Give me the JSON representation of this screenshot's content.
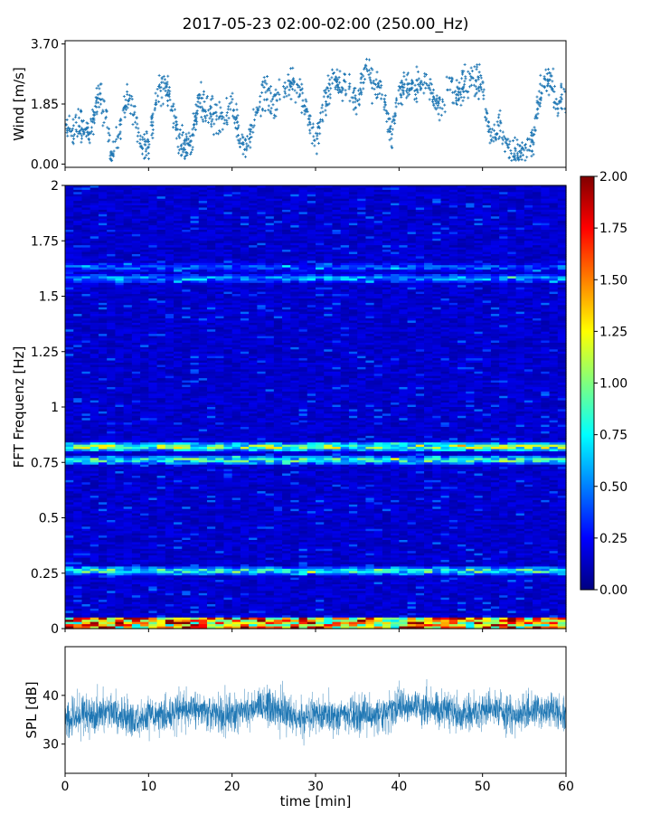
{
  "chart_data": [
    {
      "type": "scatter",
      "title": "2017-05-23 02:00-02:00 (250.00_Hz)",
      "ylabel": "Wind [m/s]",
      "xlim": [
        0,
        60
      ],
      "ylim": [
        -0.1,
        3.8
      ],
      "yticks": [
        "0.00",
        "1.85",
        "3.70"
      ],
      "marker_color": "#1f77b4",
      "series": [
        {
          "x": [
            0,
            1,
            2,
            3,
            4,
            5,
            5.5,
            6,
            7,
            8,
            9,
            10,
            11,
            12,
            13,
            14,
            15,
            16,
            17,
            18,
            19,
            20,
            21,
            22,
            23,
            24,
            25,
            26,
            27,
            28,
            29,
            30,
            31,
            32,
            33,
            34,
            35,
            36,
            37,
            38,
            39,
            40,
            41,
            42,
            43,
            44,
            45,
            46,
            47,
            48,
            49,
            50,
            51,
            52,
            53,
            54,
            55,
            56,
            57,
            58,
            59,
            60
          ],
          "y": [
            1.3,
            1.0,
            1.2,
            0.9,
            2.2,
            1.4,
            0.2,
            0.4,
            1.7,
            2.0,
            0.6,
            0.5,
            2.2,
            2.5,
            1.5,
            0.6,
            0.6,
            1.9,
            1.6,
            1.5,
            1.3,
            1.8,
            0.7,
            0.7,
            1.7,
            2.3,
            1.8,
            2.1,
            2.5,
            2.3,
            1.5,
            0.6,
            1.9,
            2.6,
            2.4,
            2.3,
            1.8,
            3.0,
            2.5,
            2.4,
            0.8,
            2.1,
            2.5,
            2.3,
            2.4,
            2.2,
            1.6,
            2.4,
            2.2,
            2.5,
            2.6,
            2.4,
            0.9,
            1.2,
            0.5,
            0.4,
            0.5,
            0.7,
            2.3,
            2.6,
            1.8,
            2.2
          ]
        }
      ]
    },
    {
      "type": "heatmap",
      "ylabel": "FFT Frequenz [Hz]",
      "xlim": [
        0,
        60
      ],
      "ylim": [
        0,
        2
      ],
      "yticks": [
        "0",
        "0.25",
        "0.5",
        "0.75",
        "1",
        "1.25",
        "1.5",
        "1.75",
        "2"
      ],
      "colormap": "jet",
      "colorbar": {
        "range": [
          0,
          2
        ],
        "ticks": [
          "0.00",
          "0.25",
          "0.50",
          "0.75",
          "1.00",
          "1.25",
          "1.50",
          "1.75",
          "2.00"
        ]
      },
      "features": [
        {
          "frequency_hz": 0.02,
          "level": 1.4
        },
        {
          "frequency_hz": 0.26,
          "level": 0.9
        },
        {
          "frequency_hz": 0.76,
          "level": 0.9
        },
        {
          "frequency_hz": 0.82,
          "level": 1.1
        },
        {
          "frequency_hz": 1.58,
          "level": 0.6
        },
        {
          "frequency_hz": 1.63,
          "level": 0.45
        }
      ],
      "background_level": 0.15
    },
    {
      "type": "line",
      "ylabel": "SPL [dB]",
      "xlabel": "time [min]",
      "xlim": [
        0,
        60
      ],
      "ylim": [
        24,
        50
      ],
      "xticks": [
        "0",
        "10",
        "20",
        "30",
        "40",
        "50",
        "60"
      ],
      "yticks": [
        "30",
        "40"
      ],
      "line_color": "#1f77b4",
      "series": [
        {
          "x": [
            0,
            2,
            4,
            6,
            8,
            10,
            12,
            14,
            16,
            18,
            20,
            22,
            24,
            26,
            28,
            30,
            32,
            34,
            36,
            38,
            40,
            42,
            44,
            46,
            48,
            50,
            52,
            54,
            56,
            58,
            60
          ],
          "y": [
            35,
            36,
            36,
            37,
            35,
            36,
            36,
            37,
            37,
            36,
            36,
            37,
            38,
            37,
            35,
            36,
            36,
            36,
            36,
            36,
            38,
            38,
            37,
            37,
            36,
            37,
            37,
            36,
            37,
            37,
            36
          ]
        }
      ]
    }
  ]
}
